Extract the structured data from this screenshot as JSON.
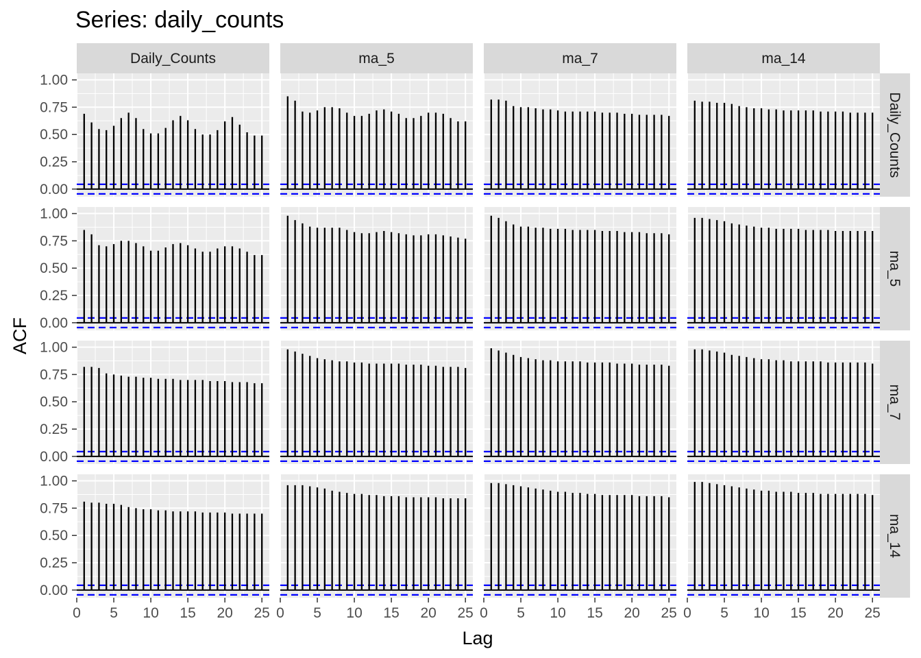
{
  "chart_data": {
    "type": "bar",
    "subtype": "acf-facet-grid",
    "title": "Series: daily_counts",
    "xlabel": "Lag",
    "ylabel": "ACF",
    "xlim": [
      0,
      26
    ],
    "ylim": [
      -0.07,
      1.06
    ],
    "xticks": [
      0,
      5,
      10,
      15,
      20,
      25
    ],
    "yticks": [
      0,
      0.25,
      0.5,
      0.75,
      1
    ],
    "ytick_labels": [
      "0.00",
      "0.25",
      "0.50",
      "0.75",
      "1.00"
    ],
    "xtick_labels": [
      "0",
      "5",
      "10",
      "15",
      "20",
      "25"
    ],
    "column_vars": [
      "Daily_Counts",
      "ma_5",
      "ma_7",
      "ma_14"
    ],
    "row_vars": [
      "Daily_Counts",
      "ma_5",
      "ma_7",
      "ma_14"
    ],
    "ci_bound": 0.044,
    "lags": [
      1,
      2,
      3,
      4,
      5,
      6,
      7,
      8,
      9,
      10,
      11,
      12,
      13,
      14,
      15,
      16,
      17,
      18,
      19,
      20,
      21,
      22,
      23,
      24,
      25
    ],
    "colors": {
      "bar": "#000000",
      "ci": "#0000ff",
      "panel": "#ebebeb",
      "grid": "#ffffff",
      "strip": "#d9d9d9"
    },
    "panels": [
      {
        "row": "Daily_Counts",
        "col": "Daily_Counts",
        "values": [
          0.69,
          0.61,
          0.55,
          0.54,
          0.58,
          0.65,
          0.7,
          0.65,
          0.55,
          0.51,
          0.51,
          0.56,
          0.63,
          0.67,
          0.63,
          0.55,
          0.5,
          0.5,
          0.54,
          0.62,
          0.66,
          0.59,
          0.52,
          0.49,
          0.49
        ]
      },
      {
        "row": "Daily_Counts",
        "col": "ma_5",
        "values": [
          0.85,
          0.81,
          0.71,
          0.7,
          0.72,
          0.75,
          0.75,
          0.74,
          0.7,
          0.67,
          0.67,
          0.69,
          0.72,
          0.73,
          0.71,
          0.69,
          0.65,
          0.65,
          0.67,
          0.7,
          0.7,
          0.69,
          0.65,
          0.62,
          0.62
        ]
      },
      {
        "row": "Daily_Counts",
        "col": "ma_7",
        "values": [
          0.82,
          0.82,
          0.81,
          0.76,
          0.75,
          0.75,
          0.74,
          0.73,
          0.73,
          0.72,
          0.71,
          0.71,
          0.71,
          0.71,
          0.71,
          0.7,
          0.7,
          0.7,
          0.69,
          0.69,
          0.68,
          0.68,
          0.68,
          0.68,
          0.67
        ]
      },
      {
        "row": "Daily_Counts",
        "col": "ma_14",
        "values": [
          0.81,
          0.8,
          0.8,
          0.79,
          0.79,
          0.78,
          0.76,
          0.75,
          0.74,
          0.74,
          0.73,
          0.73,
          0.72,
          0.72,
          0.72,
          0.72,
          0.72,
          0.71,
          0.71,
          0.71,
          0.71,
          0.7,
          0.7,
          0.7,
          0.7
        ]
      },
      {
        "row": "ma_5",
        "col": "Daily_Counts",
        "values": [
          0.85,
          0.81,
          0.71,
          0.7,
          0.72,
          0.75,
          0.75,
          0.73,
          0.7,
          0.66,
          0.66,
          0.69,
          0.72,
          0.73,
          0.71,
          0.68,
          0.65,
          0.65,
          0.68,
          0.7,
          0.7,
          0.68,
          0.65,
          0.62,
          0.62
        ]
      },
      {
        "row": "ma_5",
        "col": "ma_5",
        "values": [
          0.98,
          0.94,
          0.91,
          0.88,
          0.87,
          0.87,
          0.87,
          0.87,
          0.85,
          0.83,
          0.82,
          0.82,
          0.83,
          0.84,
          0.83,
          0.82,
          0.81,
          0.8,
          0.8,
          0.81,
          0.81,
          0.8,
          0.79,
          0.78,
          0.77
        ]
      },
      {
        "row": "ma_5",
        "col": "ma_7",
        "values": [
          0.98,
          0.96,
          0.93,
          0.9,
          0.88,
          0.88,
          0.87,
          0.87,
          0.86,
          0.86,
          0.86,
          0.85,
          0.85,
          0.85,
          0.85,
          0.84,
          0.84,
          0.84,
          0.83,
          0.83,
          0.83,
          0.82,
          0.82,
          0.82,
          0.81
        ]
      },
      {
        "row": "ma_5",
        "col": "ma_14",
        "values": [
          0.96,
          0.96,
          0.95,
          0.94,
          0.93,
          0.91,
          0.9,
          0.89,
          0.88,
          0.87,
          0.87,
          0.86,
          0.86,
          0.86,
          0.86,
          0.85,
          0.85,
          0.85,
          0.85,
          0.84,
          0.84,
          0.84,
          0.84,
          0.84,
          0.84
        ]
      },
      {
        "row": "ma_7",
        "col": "Daily_Counts",
        "values": [
          0.82,
          0.82,
          0.81,
          0.76,
          0.75,
          0.74,
          0.73,
          0.73,
          0.72,
          0.72,
          0.71,
          0.71,
          0.71,
          0.7,
          0.7,
          0.7,
          0.7,
          0.69,
          0.69,
          0.69,
          0.68,
          0.68,
          0.68,
          0.67,
          0.67
        ]
      },
      {
        "row": "ma_7",
        "col": "ma_5",
        "values": [
          0.98,
          0.96,
          0.94,
          0.92,
          0.9,
          0.89,
          0.88,
          0.87,
          0.87,
          0.86,
          0.86,
          0.85,
          0.85,
          0.85,
          0.85,
          0.85,
          0.84,
          0.84,
          0.84,
          0.83,
          0.83,
          0.82,
          0.82,
          0.82,
          0.81
        ]
      },
      {
        "row": "ma_7",
        "col": "ma_7",
        "values": [
          0.99,
          0.97,
          0.95,
          0.93,
          0.91,
          0.9,
          0.89,
          0.88,
          0.88,
          0.87,
          0.87,
          0.87,
          0.87,
          0.86,
          0.86,
          0.86,
          0.86,
          0.85,
          0.85,
          0.85,
          0.84,
          0.84,
          0.84,
          0.84,
          0.83
        ]
      },
      {
        "row": "ma_7",
        "col": "ma_14",
        "values": [
          0.98,
          0.98,
          0.97,
          0.96,
          0.95,
          0.93,
          0.92,
          0.91,
          0.9,
          0.89,
          0.89,
          0.88,
          0.88,
          0.87,
          0.87,
          0.87,
          0.87,
          0.87,
          0.86,
          0.86,
          0.86,
          0.86,
          0.86,
          0.86,
          0.85
        ]
      },
      {
        "row": "ma_14",
        "col": "Daily_Counts",
        "values": [
          0.81,
          0.8,
          0.8,
          0.79,
          0.79,
          0.78,
          0.76,
          0.75,
          0.74,
          0.74,
          0.73,
          0.73,
          0.72,
          0.72,
          0.72,
          0.72,
          0.71,
          0.71,
          0.71,
          0.71,
          0.7,
          0.7,
          0.7,
          0.7,
          0.7
        ]
      },
      {
        "row": "ma_14",
        "col": "ma_5",
        "values": [
          0.96,
          0.96,
          0.96,
          0.95,
          0.94,
          0.93,
          0.91,
          0.9,
          0.89,
          0.88,
          0.88,
          0.87,
          0.87,
          0.86,
          0.86,
          0.86,
          0.85,
          0.85,
          0.85,
          0.85,
          0.85,
          0.84,
          0.84,
          0.84,
          0.84
        ]
      },
      {
        "row": "ma_14",
        "col": "ma_7",
        "values": [
          0.98,
          0.98,
          0.97,
          0.96,
          0.95,
          0.94,
          0.93,
          0.92,
          0.91,
          0.9,
          0.9,
          0.89,
          0.89,
          0.88,
          0.88,
          0.87,
          0.87,
          0.87,
          0.87,
          0.87,
          0.86,
          0.86,
          0.86,
          0.86,
          0.85
        ]
      },
      {
        "row": "ma_14",
        "col": "ma_14",
        "values": [
          0.99,
          0.99,
          0.98,
          0.97,
          0.96,
          0.95,
          0.94,
          0.93,
          0.92,
          0.91,
          0.91,
          0.9,
          0.9,
          0.9,
          0.89,
          0.89,
          0.89,
          0.88,
          0.88,
          0.88,
          0.88,
          0.88,
          0.88,
          0.88,
          0.87
        ]
      }
    ]
  }
}
